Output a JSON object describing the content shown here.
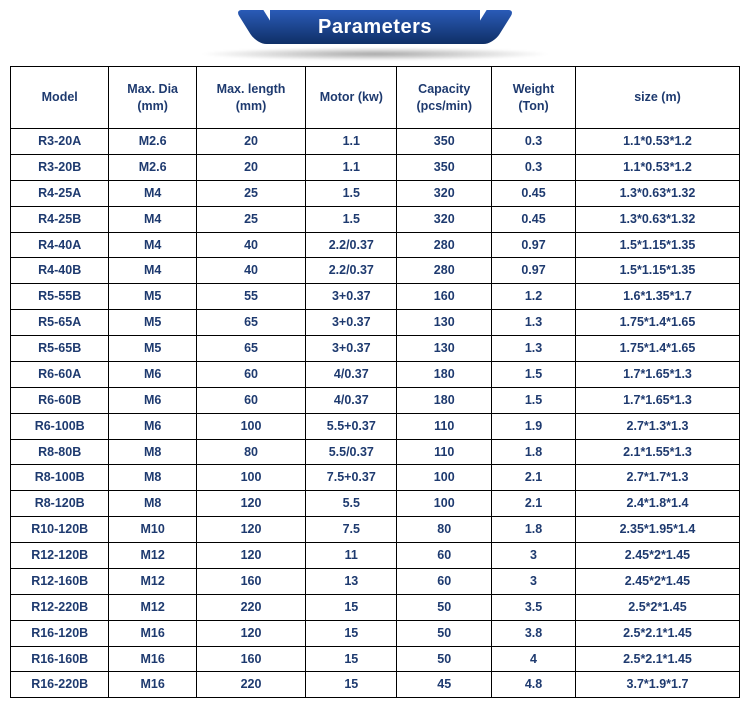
{
  "banner": {
    "title": "Parameters",
    "bg_gradient_top": "#2a5bb7",
    "bg_gradient_bottom": "#0f2f66",
    "title_color": "#ffffff",
    "title_fontsize": 20
  },
  "table": {
    "type": "table",
    "background_color": "#ffffff",
    "border_color": "#000000",
    "text_color": "#1e3a6f",
    "header_fontsize": 12.5,
    "cell_fontsize": 12.5,
    "columns": [
      {
        "label": "Model",
        "width_pct": 13.5,
        "align": "center"
      },
      {
        "label": "Max. Dia (mm)",
        "width_pct": 12.0,
        "align": "center"
      },
      {
        "label": "Max. length (mm)",
        "width_pct": 15.0,
        "align": "center"
      },
      {
        "label": "Motor (kw)",
        "width_pct": 12.5,
        "align": "center"
      },
      {
        "label": "Capacity (pcs/min)",
        "width_pct": 13.0,
        "align": "center"
      },
      {
        "label": "Weight (Ton)",
        "width_pct": 11.5,
        "align": "center"
      },
      {
        "label": "size (m)",
        "width_pct": 22.5,
        "align": "center"
      }
    ],
    "rows": [
      [
        "R3-20A",
        "M2.6",
        "20",
        "1.1",
        "350",
        "0.3",
        "1.1*0.53*1.2"
      ],
      [
        "R3-20B",
        "M2.6",
        "20",
        "1.1",
        "350",
        "0.3",
        "1.1*0.53*1.2"
      ],
      [
        "R4-25A",
        "M4",
        "25",
        "1.5",
        "320",
        "0.45",
        "1.3*0.63*1.32"
      ],
      [
        "R4-25B",
        "M4",
        "25",
        "1.5",
        "320",
        "0.45",
        "1.3*0.63*1.32"
      ],
      [
        "R4-40A",
        "M4",
        "40",
        "2.2/0.37",
        "280",
        "0.97",
        "1.5*1.15*1.35"
      ],
      [
        "R4-40B",
        "M4",
        "40",
        "2.2/0.37",
        "280",
        "0.97",
        "1.5*1.15*1.35"
      ],
      [
        "R5-55B",
        "M5",
        "55",
        "3+0.37",
        "160",
        "1.2",
        "1.6*1.35*1.7"
      ],
      [
        "R5-65A",
        "M5",
        "65",
        "3+0.37",
        "130",
        "1.3",
        "1.75*1.4*1.65"
      ],
      [
        "R5-65B",
        "M5",
        "65",
        "3+0.37",
        "130",
        "1.3",
        "1.75*1.4*1.65"
      ],
      [
        "R6-60A",
        "M6",
        "60",
        "4/0.37",
        "180",
        "1.5",
        "1.7*1.65*1.3"
      ],
      [
        "R6-60B",
        "M6",
        "60",
        "4/0.37",
        "180",
        "1.5",
        "1.7*1.65*1.3"
      ],
      [
        "R6-100B",
        "M6",
        "100",
        "5.5+0.37",
        "110",
        "1.9",
        "2.7*1.3*1.3"
      ],
      [
        "R8-80B",
        "M8",
        "80",
        "5.5/0.37",
        "110",
        "1.8",
        "2.1*1.55*1.3"
      ],
      [
        "R8-100B",
        "M8",
        "100",
        "7.5+0.37",
        "100",
        "2.1",
        "2.7*1.7*1.3"
      ],
      [
        "R8-120B",
        "M8",
        "120",
        "5.5",
        "100",
        "2.1",
        "2.4*1.8*1.4"
      ],
      [
        "R10-120B",
        "M10",
        "120",
        "7.5",
        "80",
        "1.8",
        "2.35*1.95*1.4"
      ],
      [
        "R12-120B",
        "M12",
        "120",
        "11",
        "60",
        "3",
        "2.45*2*1.45"
      ],
      [
        "R12-160B",
        "M12",
        "160",
        "13",
        "60",
        "3",
        "2.45*2*1.45"
      ],
      [
        "R12-220B",
        "M12",
        "220",
        "15",
        "50",
        "3.5",
        "2.5*2*1.45"
      ],
      [
        "R16-120B",
        "M16",
        "120",
        "15",
        "50",
        "3.8",
        "2.5*2.1*1.45"
      ],
      [
        "R16-160B",
        "M16",
        "160",
        "15",
        "50",
        "4",
        "2.5*2.1*1.45"
      ],
      [
        "R16-220B",
        "M16",
        "220",
        "15",
        "45",
        "4.8",
        "3.7*1.9*1.7"
      ]
    ]
  }
}
